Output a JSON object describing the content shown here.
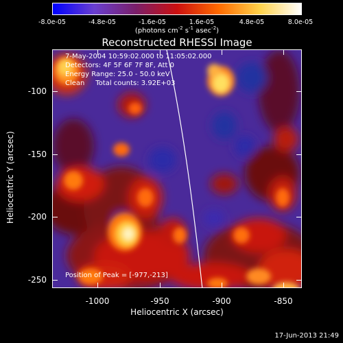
{
  "colorbar": {
    "ticks": [
      "-8.0e-05",
      "-4.8e-05",
      "-1.6e-05",
      "1.6e-05",
      "4.8e-05",
      "8.0e-05"
    ],
    "units_main": "(photons cm",
    "units_sup1": "-2",
    "units_mid": " s",
    "units_sup2": "-1",
    "units_mid2": " asec",
    "units_sup3": "-2",
    "units_end": ")",
    "gradient_colors": [
      "#0000ff",
      "#6a3fd0",
      "#7a1f6a",
      "#cc1010",
      "#ff6a00",
      "#ffd24a",
      "#ffffff"
    ]
  },
  "title": "Reconstructed RHESSI Image",
  "info": {
    "line1": "7-May-2004 10:59:02.000 to 11:05:02.000",
    "line2": "Detectors: 4F 5F 6F 7F 8F, Att 0",
    "line3": "Energy Range: 25.0 - 50.0 keV",
    "line4": "Clean     Total counts: 3.92E+03"
  },
  "peak": "Position of Peak = [-977,-213]",
  "axes": {
    "xlabel": "Heliocentric X (arcsec)",
    "ylabel": "Heliocentric Y (arcsec)",
    "xticks": [
      "-1000",
      "-950",
      "-900",
      "-850"
    ],
    "yticks": [
      "-100",
      "-150",
      "-200",
      "-250"
    ]
  },
  "timestamp": "17-Jun-2013 21:49"
}
